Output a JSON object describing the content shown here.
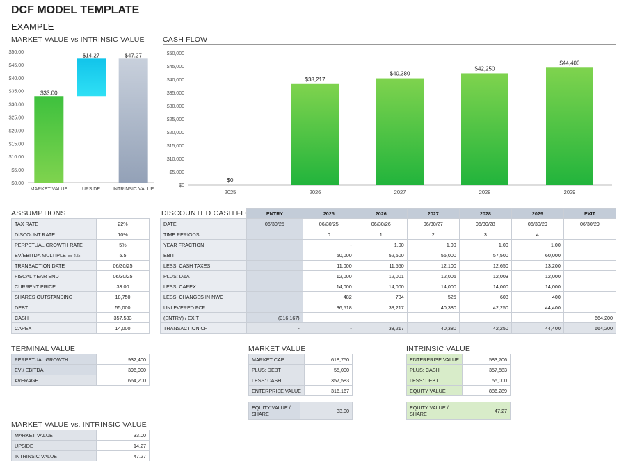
{
  "title": "DCF MODEL TEMPLATE",
  "subtitle": "EXAMPLE",
  "charts_labels": {
    "market_vs_intrinsic": "MARKET VALUE vs INTRINSIC VALUE",
    "cash_flow": "CASH FLOW"
  },
  "chart_data": [
    {
      "type": "bar",
      "title": "MARKET VALUE vs INTRINSIC VALUE",
      "categories": [
        "MARKET VALUE",
        "UPSIDE",
        "INTRINSIC VALUE"
      ],
      "values": [
        33.0,
        14.27,
        47.27
      ],
      "value_labels": [
        "$33.00",
        "$14.27",
        "$47.27"
      ],
      "ylim": [
        0,
        50
      ],
      "yticks": [
        "$0.00",
        "$5.00",
        "$10.00",
        "$15.00",
        "$20.00",
        "$25.00",
        "$30.00",
        "$35.00",
        "$40.00",
        "$45.00",
        "$50.00"
      ],
      "colors": [
        "#3ec13e",
        "#14c8e8",
        "#b9c3d2"
      ]
    },
    {
      "type": "bar",
      "title": "CASH FLOW",
      "categories": [
        "2025",
        "2026",
        "2027",
        "2028",
        "2029"
      ],
      "values": [
        0,
        38217,
        40380,
        42250,
        44400
      ],
      "value_labels": [
        "$0",
        "$38,217",
        "$40,380",
        "$42,250",
        "$44,400"
      ],
      "ylim": [
        0,
        50000
      ],
      "yticks": [
        "$0",
        "$5,000",
        "$10,000",
        "$15,000",
        "$20,000",
        "$25,000",
        "$30,000",
        "$35,000",
        "$40,000",
        "$45,000",
        "$50,000"
      ],
      "colors": [
        "#3ec13e"
      ]
    }
  ],
  "assumptions": {
    "header": "ASSUMPTIONS",
    "rows": [
      [
        "TAX RATE",
        "22%"
      ],
      [
        "DISCOUNT RATE",
        "10%"
      ],
      [
        "PERPETUAL GROWTH RATE",
        "5%"
      ],
      [
        "EV/EBITDA MULTIPLE",
        "5.5"
      ],
      [
        "TRANSACTION DATE",
        "06/30/25"
      ],
      [
        "FISCAL YEAR END",
        "06/30/25"
      ],
      [
        "CURRENT PRICE",
        "33.00"
      ],
      [
        "SHARES OUTSTANDING",
        "18,750"
      ],
      [
        "DEBT",
        "55,000"
      ],
      [
        "CASH",
        "357,583"
      ],
      [
        "CAPEX",
        "14,000"
      ]
    ],
    "ev_note": "ex. 2.5x"
  },
  "dcf": {
    "header": "DISCOUNTED CASH FLOW",
    "columns": [
      "ENTRY",
      "2025",
      "2026",
      "2027",
      "2028",
      "2029",
      "EXIT"
    ],
    "rows": [
      [
        "DATE",
        "06/30/25",
        "06/30/25",
        "06/30/26",
        "06/30/27",
        "06/30/28",
        "06/30/29",
        "06/30/29"
      ],
      [
        "TIME PERIODS",
        "",
        "0",
        "1",
        "2",
        "3",
        "4",
        ""
      ],
      [
        "YEAR FRACTION",
        "",
        "-",
        "1.00",
        "1.00",
        "1.00",
        "1.00",
        ""
      ],
      [
        "EBIT",
        "",
        "50,000",
        "52,500",
        "55,000",
        "57,500",
        "60,000",
        ""
      ],
      [
        "LESS: CASH TAXES",
        "",
        "11,000",
        "11,550",
        "12,100",
        "12,650",
        "13,200",
        ""
      ],
      [
        "PLUS: D&A",
        "",
        "12,000",
        "12,001",
        "12,005",
        "12,003",
        "12,000",
        ""
      ],
      [
        "LESS: CAPEX",
        "",
        "14,000",
        "14,000",
        "14,000",
        "14,000",
        "14,000",
        ""
      ],
      [
        "LESS: CHANGES IN NWC",
        "",
        "482",
        "734",
        "525",
        "603",
        "400",
        ""
      ],
      [
        "UNLEVERED FCF",
        "",
        "36,518",
        "38,217",
        "40,380",
        "42,250",
        "44,400",
        ""
      ],
      [
        "(ENTRY) / EXIT",
        "(316,167)",
        "",
        "",
        "",
        "",
        "",
        "664,200"
      ],
      [
        "TRANSACTION CF",
        "-",
        "-",
        "38,217",
        "40,380",
        "42,250",
        "44,400",
        "664,200"
      ]
    ]
  },
  "terminal": {
    "header": "TERMINAL VALUE",
    "rows": [
      [
        "PERPETUAL GROWTH",
        "932,400"
      ],
      [
        "EV / EBITDA",
        "396,000"
      ],
      [
        "AVERAGE",
        "664,200"
      ]
    ]
  },
  "market": {
    "header": "MARKET VALUE",
    "rows": [
      [
        "MARKET CAP",
        "618,750"
      ],
      [
        "PLUS: DEBT",
        "55,000"
      ],
      [
        "LESS: CASH",
        "357,583"
      ],
      [
        "ENTERPRISE VALUE",
        "316,167"
      ]
    ],
    "equity_label": "EQUITY VALUE / SHARE",
    "equity_value": "33.00"
  },
  "intrinsic": {
    "header": "INTRINSIC VALUE",
    "rows": [
      [
        "ENTERPRISE VALUE",
        "583,706"
      ],
      [
        "PLUS: CASH",
        "357,583"
      ],
      [
        "LESS: DEBT",
        "55,000"
      ],
      [
        "EQUITY VALUE",
        "886,289"
      ]
    ],
    "equity_label": "EQUITY VALUE / SHARE",
    "equity_value": "47.27"
  },
  "mvi": {
    "header": "MARKET VALUE vs. INTRINSIC VALUE",
    "rows": [
      [
        "MARKET VALUE",
        "33.00"
      ],
      [
        "UPSIDE",
        "14.27"
      ],
      [
        "INTRINSIC VALUE",
        "47.27"
      ]
    ]
  }
}
